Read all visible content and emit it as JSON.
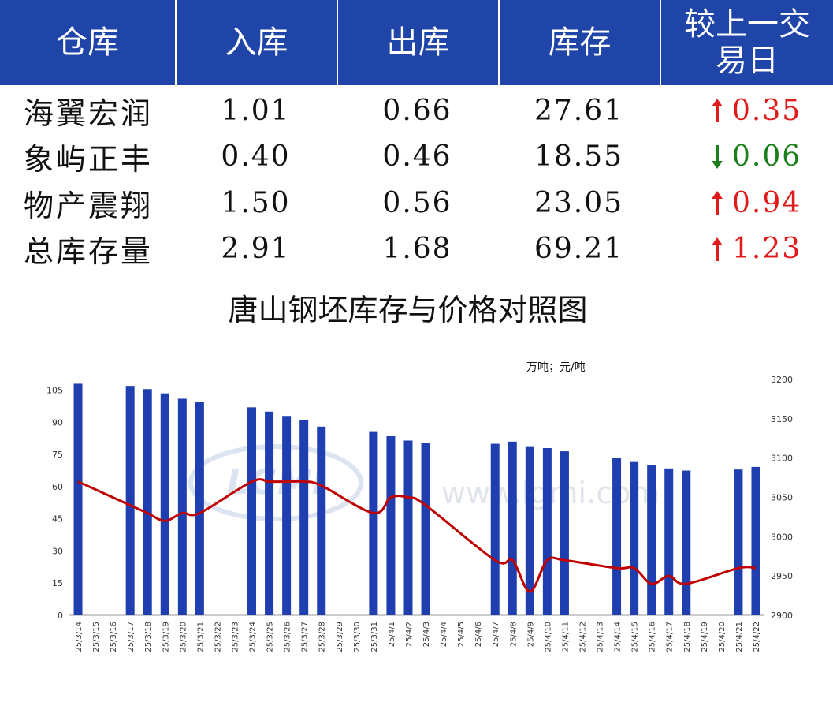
{
  "table": {
    "headers": [
      "仓库",
      "入库",
      "出库",
      "库存",
      "较上一交易日"
    ],
    "header_last_lines": [
      "较上一交",
      "易日"
    ],
    "rows": [
      {
        "name": "海翼宏润",
        "in": "1.01",
        "out": "0.66",
        "stock": "27.61",
        "dir": "up",
        "change": "0.35"
      },
      {
        "name": "象屿正丰",
        "in": "0.40",
        "out": "0.46",
        "stock": "18.55",
        "dir": "down",
        "change": "0.06"
      },
      {
        "name": "物产震翔",
        "in": "1.50",
        "out": "0.56",
        "stock": "23.05",
        "dir": "up",
        "change": "0.94"
      },
      {
        "name": "总库存量",
        "in": "2.91",
        "out": "1.68",
        "stock": "69.21",
        "dir": "up",
        "change": "1.23"
      }
    ],
    "colors": {
      "header_bg": "#1f45a8",
      "up": "#e01b1b",
      "down": "#1a7f1a"
    }
  },
  "chart_data": {
    "type": "bar",
    "title": "唐山钢坯库存与价格对照图",
    "unit_label": "万吨；元/吨",
    "categories": [
      "25/3/14",
      "25/3/15",
      "25/3/16",
      "25/3/17",
      "25/3/18",
      "25/3/19",
      "25/3/20",
      "25/3/21",
      "25/3/22",
      "25/3/23",
      "25/3/24",
      "25/3/25",
      "25/3/26",
      "25/3/27",
      "25/3/28",
      "25/3/29",
      "25/3/30",
      "25/3/31",
      "25/4/1",
      "25/4/2",
      "25/4/3",
      "25/4/4",
      "25/4/5",
      "25/4/6",
      "25/4/7",
      "25/4/8",
      "25/4/9",
      "25/4/10",
      "25/4/11",
      "25/4/12",
      "25/4/13",
      "25/4/14",
      "25/4/15",
      "25/4/16",
      "25/4/17",
      "25/4/18",
      "25/4/19",
      "25/4/20",
      "25/4/21",
      "25/4/22"
    ],
    "series": [
      {
        "kind": "bar",
        "axis": "left",
        "color": "#1f3fb0",
        "values": [
          108,
          null,
          null,
          107,
          105.5,
          103.5,
          101,
          99.5,
          null,
          null,
          97,
          95,
          93,
          91,
          88,
          null,
          null,
          85.5,
          83.5,
          81.5,
          80.5,
          null,
          null,
          null,
          80,
          81,
          78.5,
          78,
          76.5,
          null,
          null,
          73.5,
          71.5,
          70,
          68.5,
          67.5,
          null,
          null,
          68,
          69.2
        ]
      },
      {
        "kind": "line",
        "axis": "right",
        "color": "#c00000",
        "values": [
          3070,
          null,
          null,
          3040,
          3030,
          3020,
          3030,
          3030,
          null,
          null,
          3070,
          3070,
          3070,
          3070,
          3065,
          null,
          null,
          3030,
          3050,
          3050,
          3040,
          null,
          null,
          null,
          2970,
          2970,
          2930,
          2970,
          2970,
          null,
          null,
          2960,
          2960,
          2940,
          2950,
          2940,
          null,
          null,
          2960,
          2960
        ]
      }
    ],
    "y_left": {
      "min": 0,
      "max": 110,
      "ticks": [
        0,
        15,
        30,
        45,
        60,
        75,
        90,
        105
      ]
    },
    "y_right": {
      "min": 2900,
      "max": 3200,
      "ticks": [
        2900,
        2950,
        3000,
        3050,
        3100,
        3150,
        3200
      ]
    },
    "watermark": "www.lgmi.com",
    "logo_text": "LGMI"
  }
}
